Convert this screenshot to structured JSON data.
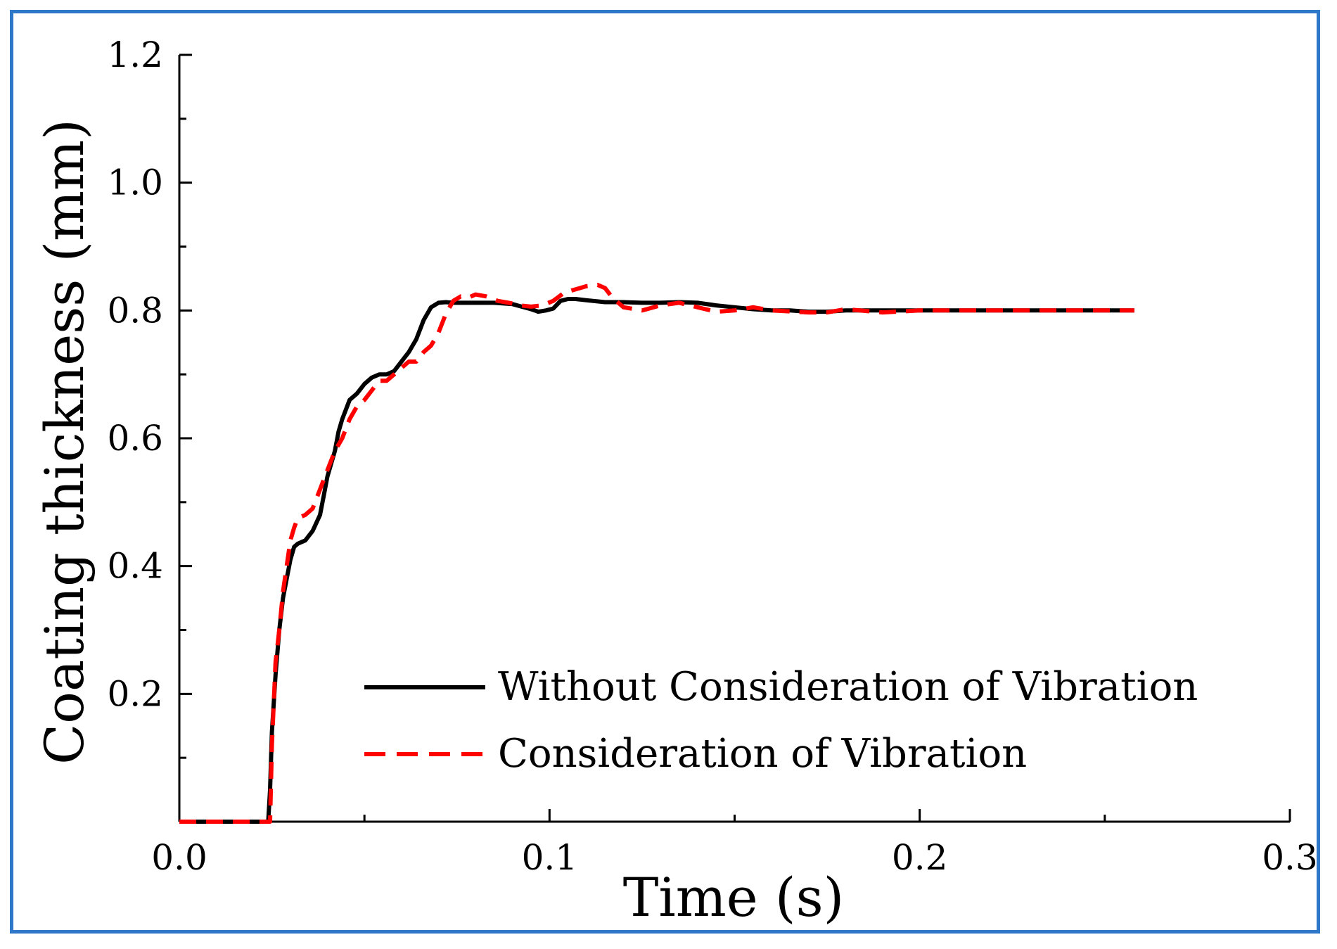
{
  "chart_data": {
    "type": "line",
    "title": "",
    "xlabel": "Time (s)",
    "ylabel": "Coating thickness (mm)",
    "xlim": [
      0.0,
      0.3
    ],
    "ylim": [
      0.0,
      1.2
    ],
    "xticks": [
      0.0,
      0.1,
      0.2,
      0.3
    ],
    "xtick_labels": [
      "0.0",
      "0.1",
      "0.2",
      "0.3"
    ],
    "yticks": [
      0.2,
      0.4,
      0.6,
      0.8,
      1.0,
      1.2
    ],
    "ytick_labels": [
      "0.2",
      "0.4",
      "0.6",
      "0.8",
      "1.0",
      "1.2"
    ],
    "grid": false,
    "legend_position": "lower-right",
    "series": [
      {
        "name": "Without Consideration of Vibration",
        "color": "#000000",
        "style": "solid",
        "x": [
          0.0,
          0.024,
          0.0245,
          0.025,
          0.026,
          0.027,
          0.028,
          0.029,
          0.03,
          0.031,
          0.032,
          0.034,
          0.036,
          0.038,
          0.039,
          0.04,
          0.041,
          0.042,
          0.043,
          0.044,
          0.045,
          0.046,
          0.048,
          0.05,
          0.052,
          0.054,
          0.056,
          0.058,
          0.06,
          0.062,
          0.064,
          0.066,
          0.068,
          0.07,
          0.072,
          0.074,
          0.076,
          0.08,
          0.085,
          0.09,
          0.095,
          0.097,
          0.099,
          0.101,
          0.103,
          0.105,
          0.107,
          0.11,
          0.115,
          0.12,
          0.125,
          0.13,
          0.135,
          0.14,
          0.145,
          0.15,
          0.155,
          0.16,
          0.165,
          0.17,
          0.175,
          0.18,
          0.185,
          0.19,
          0.195,
          0.2,
          0.21,
          0.22,
          0.23,
          0.24,
          0.25,
          0.258
        ],
        "values": [
          0.0,
          0.0,
          0.05,
          0.14,
          0.23,
          0.3,
          0.35,
          0.38,
          0.41,
          0.43,
          0.435,
          0.44,
          0.455,
          0.48,
          0.51,
          0.54,
          0.56,
          0.58,
          0.61,
          0.63,
          0.645,
          0.66,
          0.67,
          0.685,
          0.695,
          0.7,
          0.7,
          0.705,
          0.72,
          0.735,
          0.755,
          0.785,
          0.805,
          0.812,
          0.813,
          0.812,
          0.812,
          0.812,
          0.812,
          0.81,
          0.802,
          0.798,
          0.8,
          0.803,
          0.815,
          0.818,
          0.818,
          0.816,
          0.813,
          0.813,
          0.812,
          0.812,
          0.813,
          0.812,
          0.808,
          0.805,
          0.802,
          0.8,
          0.8,
          0.798,
          0.798,
          0.8,
          0.8,
          0.8,
          0.8,
          0.8,
          0.8,
          0.8,
          0.8,
          0.8,
          0.8,
          0.8
        ]
      },
      {
        "name": "Consideration of Vibration",
        "color": "#ff0000",
        "style": "dashed",
        "x": [
          0.0,
          0.0245,
          0.025,
          0.026,
          0.027,
          0.028,
          0.029,
          0.03,
          0.031,
          0.032,
          0.034,
          0.036,
          0.038,
          0.04,
          0.042,
          0.044,
          0.046,
          0.048,
          0.05,
          0.052,
          0.054,
          0.056,
          0.058,
          0.06,
          0.062,
          0.064,
          0.066,
          0.068,
          0.07,
          0.072,
          0.074,
          0.076,
          0.078,
          0.08,
          0.083,
          0.086,
          0.089,
          0.092,
          0.095,
          0.098,
          0.101,
          0.104,
          0.107,
          0.11,
          0.113,
          0.115,
          0.117,
          0.12,
          0.125,
          0.13,
          0.135,
          0.14,
          0.145,
          0.15,
          0.155,
          0.16,
          0.17,
          0.175,
          0.18,
          0.19,
          0.2,
          0.21,
          0.22,
          0.23,
          0.24,
          0.25,
          0.258
        ],
        "values": [
          0.0,
          0.0,
          0.12,
          0.25,
          0.3,
          0.36,
          0.4,
          0.44,
          0.46,
          0.475,
          0.48,
          0.49,
          0.52,
          0.55,
          0.58,
          0.6,
          0.63,
          0.65,
          0.66,
          0.675,
          0.69,
          0.69,
          0.7,
          0.71,
          0.72,
          0.72,
          0.735,
          0.745,
          0.765,
          0.795,
          0.815,
          0.822,
          0.82,
          0.825,
          0.822,
          0.815,
          0.812,
          0.808,
          0.806,
          0.808,
          0.815,
          0.828,
          0.833,
          0.838,
          0.84,
          0.835,
          0.82,
          0.805,
          0.8,
          0.808,
          0.812,
          0.805,
          0.798,
          0.8,
          0.805,
          0.8,
          0.797,
          0.797,
          0.802,
          0.797,
          0.8,
          0.8,
          0.8,
          0.8,
          0.8,
          0.8,
          0.8
        ]
      }
    ]
  }
}
